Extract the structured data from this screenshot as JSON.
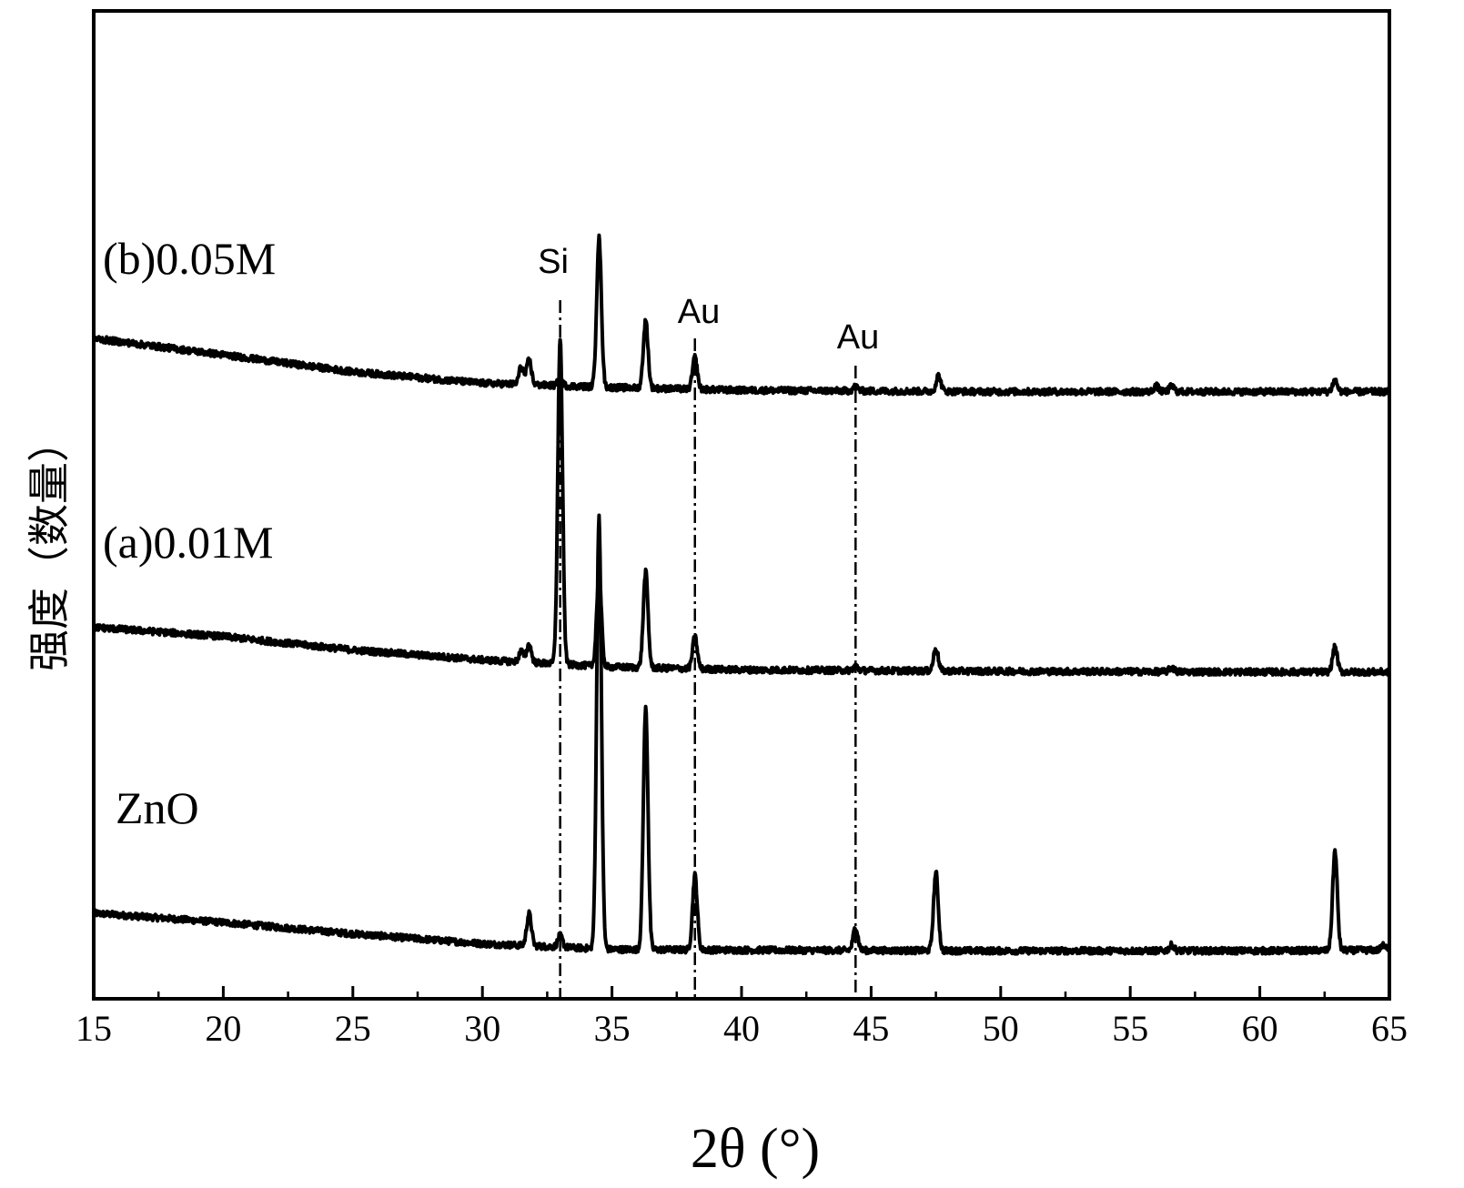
{
  "chart_data": {
    "type": "line",
    "title": "",
    "xlabel": "2θ (°)",
    "ylabel": "强度（数量）",
    "xlim": [
      15,
      65
    ],
    "x_ticks": [
      "15",
      "20",
      "25",
      "30",
      "35",
      "40",
      "45",
      "50",
      "55",
      "60",
      "65"
    ],
    "y_ticks_shown": false,
    "grid": false,
    "series": [
      {
        "name": "ZnO",
        "baseline": [
          [
            15,
            0.95
          ],
          [
            20,
            0.82
          ],
          [
            25,
            0.66
          ],
          [
            30,
            0.52
          ],
          [
            35,
            0.44
          ],
          [
            40,
            0.43
          ],
          [
            50,
            0.42
          ],
          [
            60,
            0.42
          ],
          [
            65,
            0.43
          ]
        ],
        "peaks": [
          {
            "x": 31.8,
            "height": 0.45
          },
          {
            "x": 33.0,
            "height": 0.16
          },
          {
            "x": 34.5,
            "height": 6.1
          },
          {
            "x": 36.3,
            "height": 3.4
          },
          {
            "x": 38.2,
            "height": 1.05
          },
          {
            "x": 44.4,
            "height": 0.33
          },
          {
            "x": 47.5,
            "height": 1.1
          },
          {
            "x": 56.6,
            "height": 0.08
          },
          {
            "x": 62.9,
            "height": 1.4
          },
          {
            "x": 64.8,
            "height": 0.08
          }
        ]
      },
      {
        "name": "(a)0.01M",
        "baseline": [
          [
            15,
            4.98
          ],
          [
            20,
            4.85
          ],
          [
            25,
            4.66
          ],
          [
            30,
            4.52
          ],
          [
            35,
            4.42
          ],
          [
            40,
            4.38
          ],
          [
            50,
            4.36
          ],
          [
            60,
            4.35
          ],
          [
            65,
            4.35
          ]
        ],
        "peaks": [
          {
            "x": 31.5,
            "height": 0.15
          },
          {
            "x": 31.8,
            "height": 0.25
          },
          {
            "x": 33.0,
            "height": 4.6
          },
          {
            "x": 34.5,
            "height": 1.3
          },
          {
            "x": 36.3,
            "height": 1.35
          },
          {
            "x": 38.2,
            "height": 0.45
          },
          {
            "x": 44.4,
            "height": 0.06
          },
          {
            "x": 47.5,
            "height": 0.32
          },
          {
            "x": 56.6,
            "height": 0.06
          },
          {
            "x": 62.9,
            "height": 0.35
          }
        ]
      },
      {
        "name": "(b)0.05M",
        "baseline": [
          [
            15,
            9.05
          ],
          [
            20,
            8.82
          ],
          [
            25,
            8.58
          ],
          [
            30,
            8.42
          ],
          [
            35,
            8.36
          ],
          [
            40,
            8.32
          ],
          [
            50,
            8.3
          ],
          [
            60,
            8.3
          ],
          [
            65,
            8.3
          ]
        ],
        "peaks": [
          {
            "x": 31.5,
            "height": 0.25
          },
          {
            "x": 31.8,
            "height": 0.35
          },
          {
            "x": 33.0,
            "height": 0.09
          },
          {
            "x": 34.5,
            "height": 2.1
          },
          {
            "x": 36.3,
            "height": 0.95
          },
          {
            "x": 38.2,
            "height": 0.45
          },
          {
            "x": 44.4,
            "height": 0.06
          },
          {
            "x": 47.6,
            "height": 0.22
          },
          {
            "x": 56.0,
            "height": 0.08
          },
          {
            "x": 56.6,
            "height": 0.08
          },
          {
            "x": 62.9,
            "height": 0.16
          }
        ]
      }
    ],
    "reference_lines": [
      {
        "x": 33.0,
        "label": "Si"
      },
      {
        "x": 38.2,
        "label": "Au"
      },
      {
        "x": 44.4,
        "label": "Au"
      }
    ]
  }
}
